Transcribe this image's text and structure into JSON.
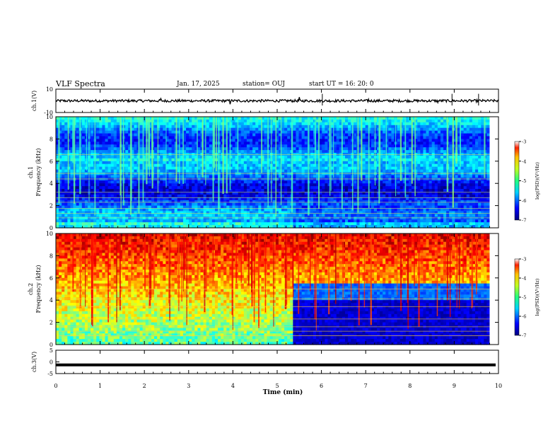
{
  "header": {
    "title": "VLF Spectra",
    "date": "Jan. 17, 2025",
    "station": "station= OUJ",
    "start_ut": "start  UT =   16: 20: 0"
  },
  "colors": {
    "trace": "#000000",
    "axis": "#000000",
    "background": "#ffffff"
  },
  "chart_data": [
    {
      "type": "line",
      "panel": "ch1-waveform",
      "ylabel": "ch.1(V)",
      "ylim": [
        -10,
        10
      ],
      "yticks": [
        "10",
        "-10"
      ],
      "xlim": [
        0,
        10
      ],
      "series": [
        {
          "x": [
            0,
            10
          ],
          "y": [
            0,
            0
          ]
        }
      ]
    },
    {
      "type": "heatmap",
      "panel": "ch1-spectrogram",
      "ylabel_lines": [
        "ch.1",
        "Frequency (kHz)"
      ],
      "ylim": [
        0,
        10
      ],
      "yticks": [
        "0",
        "2",
        "4",
        "6",
        "8",
        "10"
      ],
      "xlim": [
        0,
        10
      ],
      "event_time_min": 5.35,
      "colorbar": {
        "label": "log(PSD)(V²/Hz)",
        "range": [
          -7,
          -3
        ],
        "ticks": [
          "-3",
          "-4",
          "-5",
          "-6",
          "-7"
        ]
      }
    },
    {
      "type": "heatmap",
      "panel": "ch2-spectrogram",
      "ylabel_lines": [
        "ch.2",
        "Frequency (kHz)"
      ],
      "ylim": [
        0,
        10
      ],
      "yticks": [
        "0",
        "2",
        "4",
        "6",
        "8",
        "10"
      ],
      "xlim": [
        0,
        10
      ],
      "event_time_min": 5.35,
      "colorbar": {
        "label": "log(PSD)(V²/Hz)",
        "range": [
          -7,
          -3
        ],
        "ticks": [
          "-3",
          "-4",
          "-5",
          "-6",
          "-7"
        ]
      }
    },
    {
      "type": "line",
      "panel": "ch3-waveform",
      "ylabel": "ch.3(V)",
      "ylim": [
        -5,
        5
      ],
      "yticks": [
        "5",
        "0",
        "-5"
      ],
      "xlim": [
        0,
        10
      ],
      "series": [
        {
          "x": [
            0,
            10
          ],
          "y": [
            -1.3,
            -1.3
          ]
        }
      ]
    }
  ],
  "xaxis": {
    "label": "Time  (min)",
    "ticks": [
      "0",
      "1",
      "2",
      "3",
      "4",
      "5",
      "6",
      "7",
      "8",
      "9",
      "10"
    ]
  }
}
